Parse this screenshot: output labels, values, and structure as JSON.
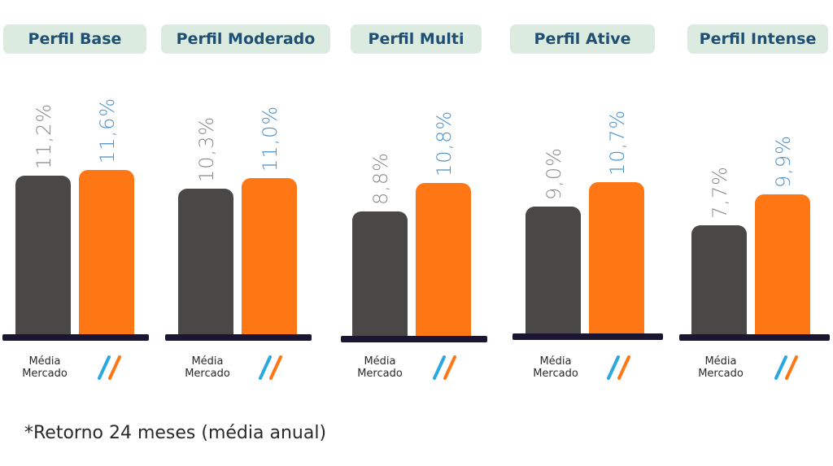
{
  "chart_data": {
    "type": "bar",
    "categories": [
      "Perfil Base",
      "Perfil Moderado",
      "Perfil Multi",
      "Perfil Ative",
      "Perfil Intense"
    ],
    "series": [
      {
        "name": "Média Mercado",
        "values": [
          11.2,
          10.3,
          8.8,
          9.0,
          7.7
        ],
        "labels": [
          "11,2%",
          "10,3%",
          "8,8%",
          "9,0%",
          "7,7%"
        ]
      },
      {
        "name": "//",
        "values": [
          11.6,
          11.0,
          10.8,
          10.7,
          9.9
        ],
        "labels": [
          "11,6%",
          "11,0%",
          "10,8%",
          "10,7%",
          "9,9%"
        ]
      }
    ],
    "title": "",
    "xlabel": "",
    "ylabel": ""
  },
  "legend": {
    "market_line1": "Média",
    "market_line2": "Mercado"
  },
  "footnote": "*Retorno 24 meses (média anual)",
  "colors": {
    "market": "#4a4847",
    "fund": "#ff7614",
    "header_bg": "#dcebe0",
    "header_text": "#1f4f73",
    "baseline": "#1a1530",
    "market_label": "#8a8a8a",
    "fund_label": "#4a90c8",
    "logo_blue": "#2aa8e0",
    "logo_orange": "#ff7614",
    "text": "#2a2a2a"
  }
}
